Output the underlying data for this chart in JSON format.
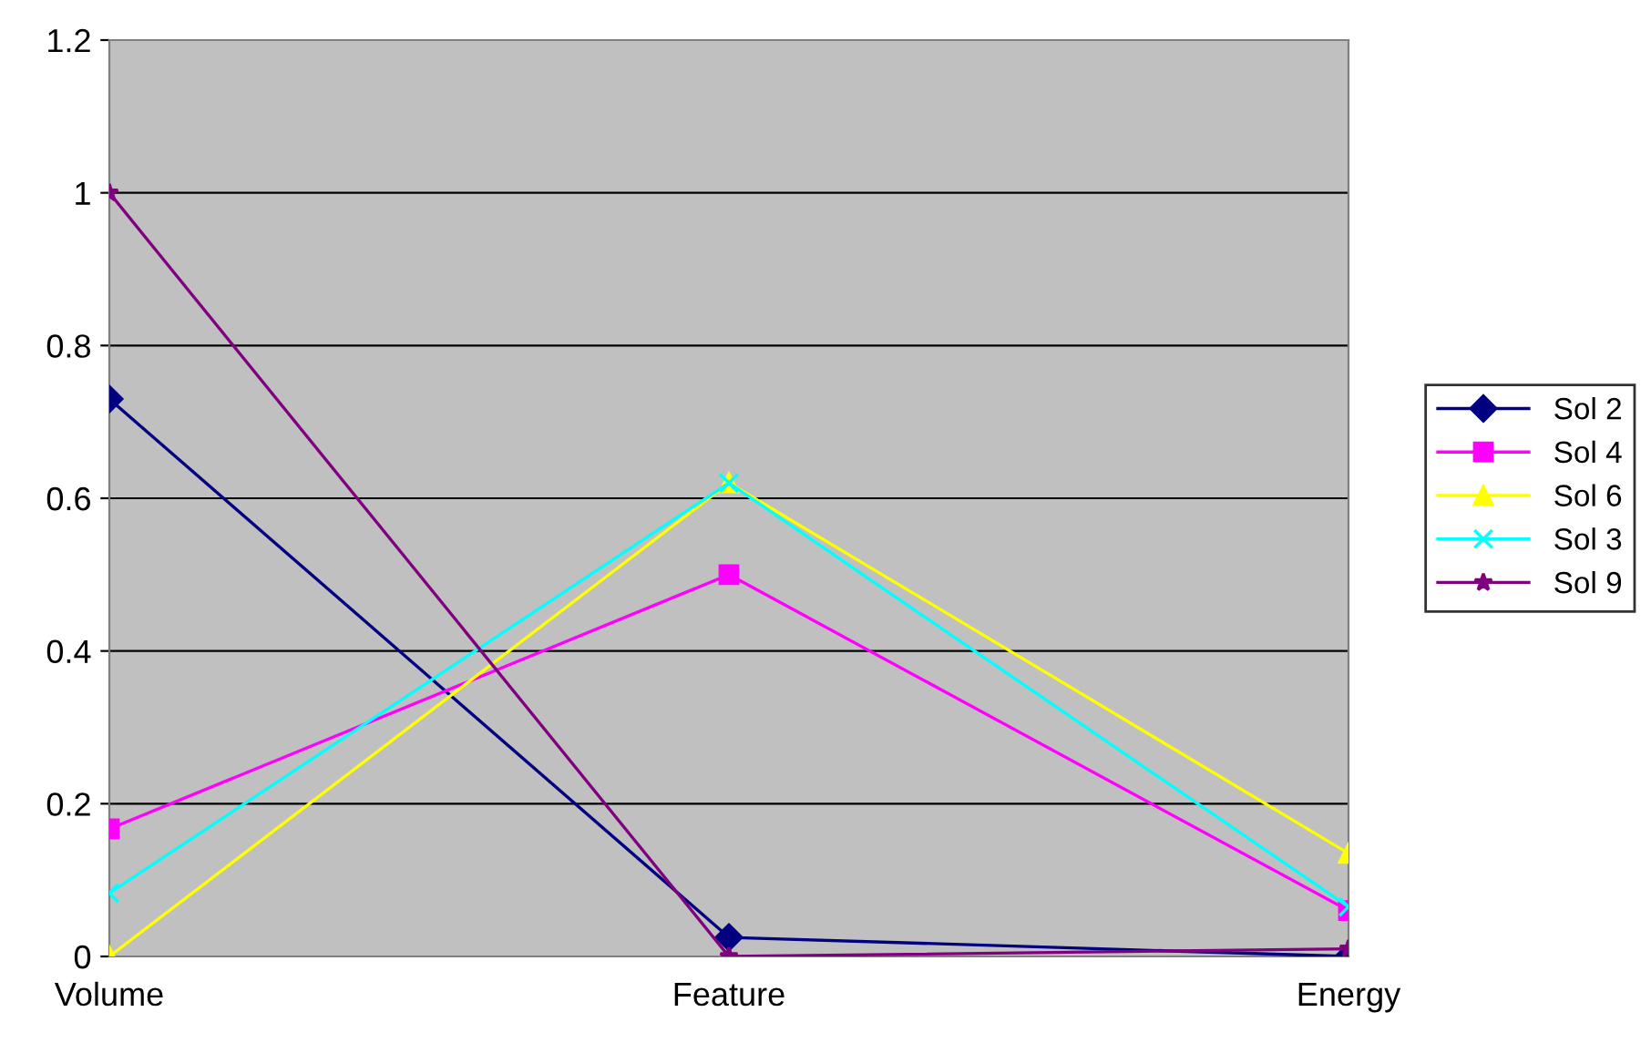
{
  "chart_data": {
    "type": "line",
    "categories": [
      "Volume",
      "Feature",
      "Energy"
    ],
    "series": [
      {
        "name": "Sol 2",
        "color": "#000080",
        "marker": "diamond",
        "values": [
          0.73,
          0.025,
          0
        ]
      },
      {
        "name": "Sol 4",
        "color": "#ff00ff",
        "marker": "square",
        "values": [
          0.167,
          0.5,
          0.06
        ]
      },
      {
        "name": "Sol 6",
        "color": "#ffff00",
        "marker": "triangle",
        "values": [
          0,
          0.62,
          0.135
        ]
      },
      {
        "name": "Sol 3",
        "color": "#00ffff",
        "marker": "cross",
        "values": [
          0.083,
          0.62,
          0.065
        ]
      },
      {
        "name": "Sol 9",
        "color": "#800080",
        "marker": "star",
        "values": [
          1,
          0,
          0.01
        ]
      }
    ],
    "ylim": [
      0,
      1.2
    ],
    "yticks": [
      0,
      0.2,
      0.4,
      0.6,
      0.8,
      1,
      1.2
    ],
    "grid": "y",
    "legend": "right"
  }
}
